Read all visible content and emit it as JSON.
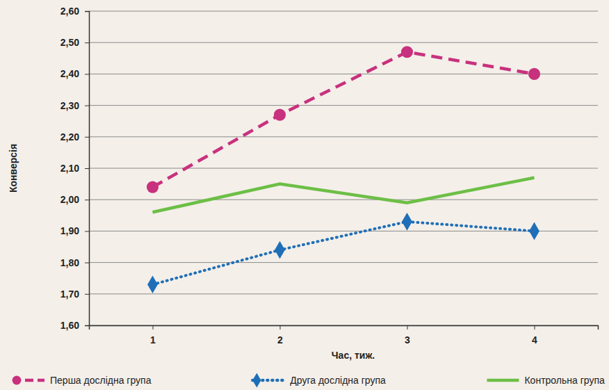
{
  "chart_data": {
    "type": "line",
    "x_label": "Час, тиж.",
    "y_label": "Конверсія",
    "categories": [
      "1",
      "2",
      "3",
      "4"
    ],
    "ylim": [
      1.6,
      2.6
    ],
    "yticks": [
      {
        "value": 1.6,
        "label": "1,60"
      },
      {
        "value": 1.7,
        "label": "1,70"
      },
      {
        "value": 1.8,
        "label": "1,80"
      },
      {
        "value": 1.9,
        "label": "1,90"
      },
      {
        "value": 2.0,
        "label": "2,00"
      },
      {
        "value": 2.1,
        "label": "2,10"
      },
      {
        "value": 2.2,
        "label": "2,20"
      },
      {
        "value": 2.3,
        "label": "2,30"
      },
      {
        "value": 2.4,
        "label": "2,40"
      },
      {
        "value": 2.5,
        "label": "2,50"
      },
      {
        "value": 2.6,
        "label": "2,60"
      }
    ],
    "grid": true,
    "legend": "bottom",
    "series": [
      {
        "name": "Перша дослідна група",
        "color": "#c8317d",
        "marker": "circle",
        "line_style": "dashed",
        "values": [
          2.04,
          2.27,
          2.47,
          2.4
        ]
      },
      {
        "name": "Друга дослідна група",
        "color": "#1f6fb8",
        "marker": "diamond",
        "line_style": "dotted",
        "values": [
          1.73,
          1.84,
          1.93,
          1.9
        ]
      },
      {
        "name": "Контрольна група",
        "color": "#6cbf46",
        "marker": "none",
        "line_style": "solid",
        "values": [
          1.96,
          2.05,
          1.99,
          2.07
        ]
      }
    ]
  }
}
